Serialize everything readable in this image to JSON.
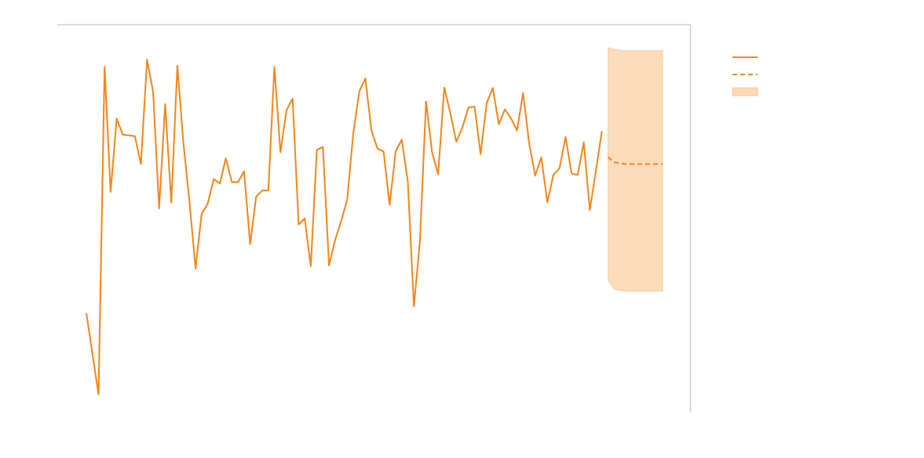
{
  "chart_data": {
    "type": "line",
    "title": "",
    "xlabel": "",
    "ylabel": "",
    "grid": false,
    "legend_position": "right",
    "colors": {
      "observed": "#f58518",
      "forecast": "#f58518",
      "interval_fill": "#fdd9b5",
      "interval_stroke": "#fcc595",
      "frame": "#cccccc"
    },
    "x_range": [
      0,
      100
    ],
    "y_range": [
      0,
      100
    ],
    "series": [
      {
        "role": "observed",
        "style": "solid",
        "x": [
          0,
          1,
          2,
          3,
          4,
          5,
          6,
          7,
          8,
          9,
          10,
          11,
          12,
          13,
          14,
          15,
          16,
          17,
          18,
          19,
          20,
          21,
          22,
          23,
          24,
          25,
          26,
          27,
          28,
          29,
          30,
          31,
          32,
          33,
          34,
          35,
          36,
          37,
          38,
          39,
          40,
          41,
          42,
          43,
          44,
          45,
          46,
          47,
          48,
          49,
          50,
          51,
          52,
          53,
          54,
          55,
          56,
          57,
          58,
          59,
          60,
          61,
          62,
          63,
          64,
          65,
          66,
          67,
          68,
          69,
          70,
          71,
          72,
          73,
          74,
          75,
          76,
          77,
          78,
          79,
          80,
          81,
          82,
          83,
          84,
          85
        ],
        "values": [
          22.3,
          11.7,
          1.0,
          86.6,
          53.9,
          73.1,
          68.9,
          68.7,
          68.5,
          61.2,
          88.5,
          80.1,
          49.6,
          76.9,
          51.1,
          86.9,
          66.8,
          51.4,
          33.9,
          48.2,
          50.8,
          57.3,
          56.1,
          62.7,
          56.5,
          56.5,
          59.3,
          40.3,
          52.7,
          54.3,
          54.3,
          86.6,
          64.3,
          75.3,
          78.3,
          45.4,
          47.0,
          34.5,
          64.9,
          65.7,
          34.7,
          41.3,
          46.3,
          51.8,
          69.3,
          80.2,
          83.6,
          70.0,
          65.2,
          64.5,
          50.5,
          64.5,
          67.6,
          56.6,
          24.0,
          41.0,
          77.6,
          64.3,
          58.5,
          81.2,
          74.5,
          67.0,
          70.8,
          76.0,
          76.2,
          63.8,
          77.1,
          81.1,
          71.6,
          75.5,
          73.2,
          70.0,
          79.8,
          66.7,
          58.2,
          63.0,
          51.2,
          58.4,
          60.1,
          68.3,
          58.7,
          58.4,
          66.9,
          49.2,
          59.4,
          69.8
        ]
      },
      {
        "role": "forecast",
        "style": "dashed",
        "x": [
          86,
          87,
          88,
          89,
          90,
          91,
          92,
          93,
          94,
          95
        ],
        "values": [
          63.0,
          61.7,
          61.4,
          61.2,
          61.2,
          61.2,
          61.2,
          61.2,
          61.2,
          61.2
        ]
      }
    ],
    "interval": {
      "x": [
        86,
        87,
        88,
        89,
        90,
        91,
        92,
        93,
        94,
        95
      ],
      "lower": [
        31.0,
        28.6,
        28.2,
        28.0,
        28.0,
        28.0,
        28.0,
        28.0,
        28.0,
        28.0
      ],
      "upper": [
        91.6,
        91.2,
        90.9,
        90.8,
        90.8,
        90.8,
        90.8,
        90.8,
        90.8,
        90.8
      ]
    }
  }
}
